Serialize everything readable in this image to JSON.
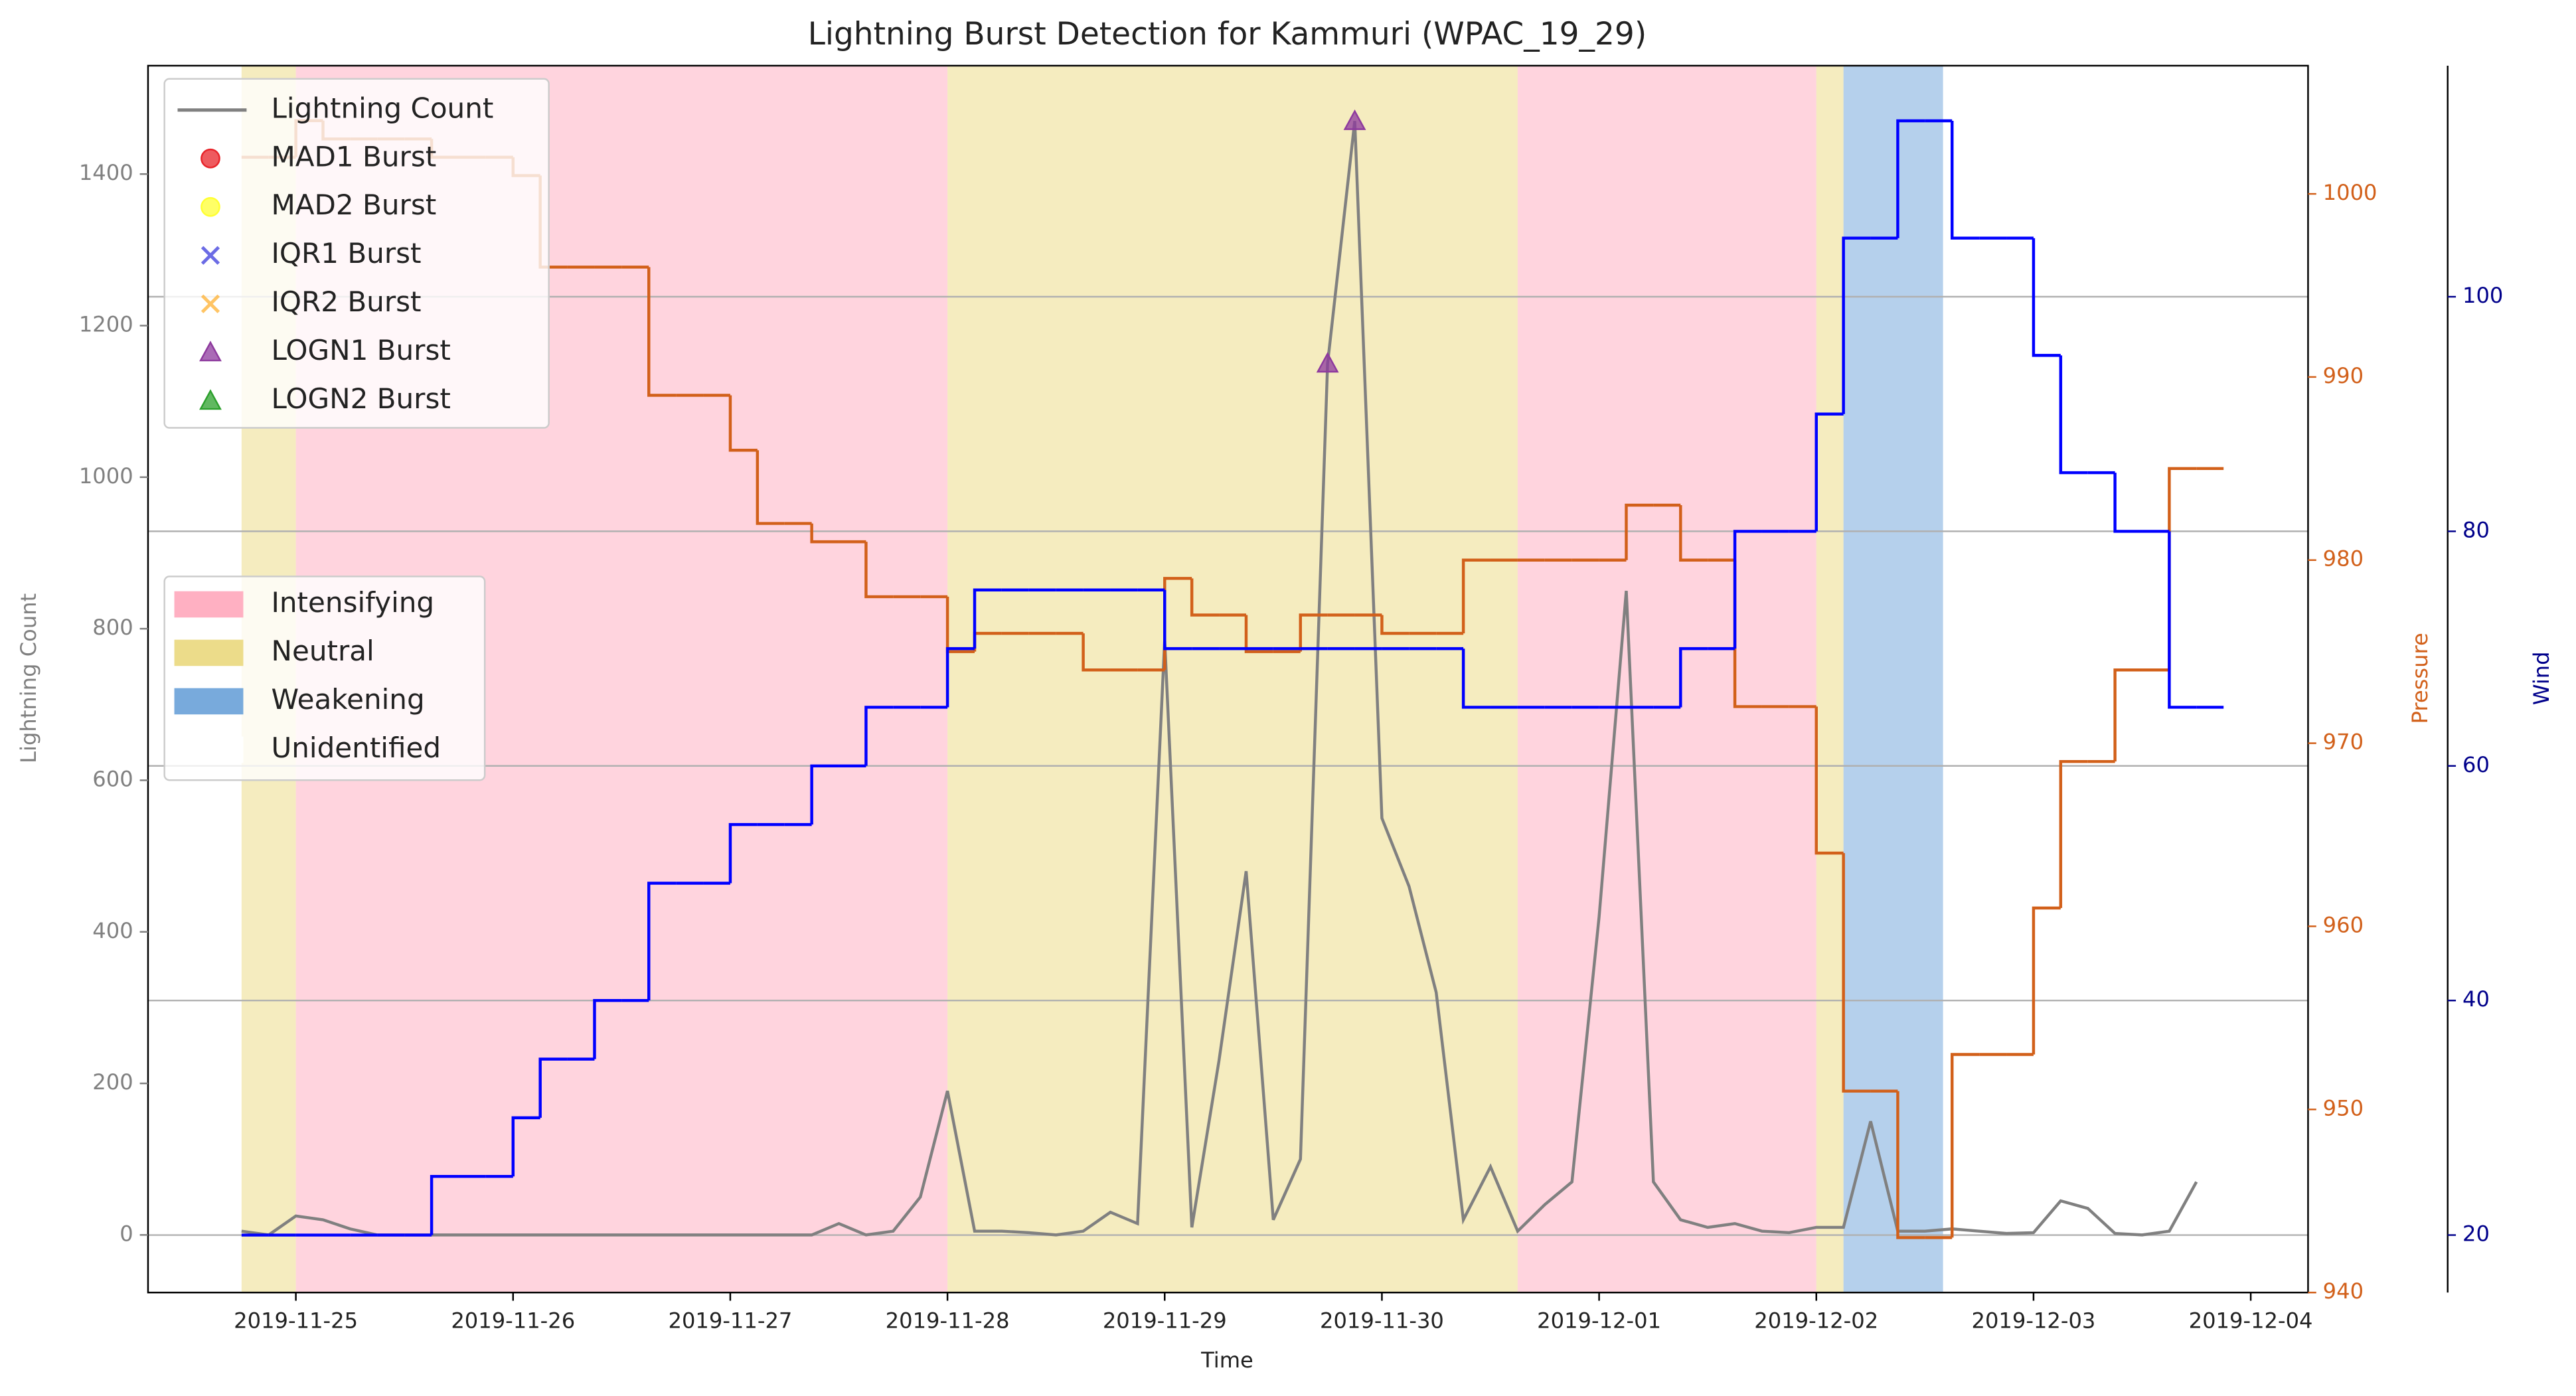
{
  "chart_data": {
    "type": "line",
    "title": "Lightning Burst Detection for Kammuri (WPAC_19_29)",
    "xlabel": "Time",
    "ylabel": "Lightning Count",
    "y2label": "Pressure",
    "y3label": "Wind",
    "xlim": [
      "2019-11-24 07:40",
      "2019-12-04 06:20"
    ],
    "xticks": [
      "2019-11-25",
      "2019-11-26",
      "2019-11-27",
      "2019-11-28",
      "2019-11-29",
      "2019-11-30",
      "2019-12-01",
      "2019-12-02",
      "2019-12-03",
      "2019-12-04"
    ],
    "ylim": [
      -76,
      1543
    ],
    "yticks": [
      0,
      200,
      400,
      600,
      800,
      1000,
      1200,
      1400
    ],
    "y2lim": [
      940,
      1007
    ],
    "y2ticks": [
      940,
      950,
      960,
      970,
      980,
      990,
      1000
    ],
    "y3lim": [
      15.1,
      119.7
    ],
    "y3ticks": [
      20,
      40,
      60,
      80,
      100
    ],
    "grid_axis": "y3",
    "x": [
      "2019-11-24 18:00",
      "2019-11-24 21:00",
      "2019-11-25 00:00",
      "2019-11-25 03:00",
      "2019-11-25 06:00",
      "2019-11-25 09:00",
      "2019-11-25 12:00",
      "2019-11-25 15:00",
      "2019-11-25 18:00",
      "2019-11-25 21:00",
      "2019-11-26 00:00",
      "2019-11-26 03:00",
      "2019-11-26 06:00",
      "2019-11-26 09:00",
      "2019-11-26 12:00",
      "2019-11-26 15:00",
      "2019-11-26 18:00",
      "2019-11-26 21:00",
      "2019-11-27 00:00",
      "2019-11-27 03:00",
      "2019-11-27 06:00",
      "2019-11-27 09:00",
      "2019-11-27 12:00",
      "2019-11-27 15:00",
      "2019-11-27 18:00",
      "2019-11-27 21:00",
      "2019-11-28 00:00",
      "2019-11-28 03:00",
      "2019-11-28 06:00",
      "2019-11-28 09:00",
      "2019-11-28 12:00",
      "2019-11-28 15:00",
      "2019-11-28 18:00",
      "2019-11-28 21:00",
      "2019-11-29 00:00",
      "2019-11-29 03:00",
      "2019-11-29 06:00",
      "2019-11-29 09:00",
      "2019-11-29 12:00",
      "2019-11-29 15:00",
      "2019-11-29 18:00",
      "2019-11-29 21:00",
      "2019-11-30 00:00",
      "2019-11-30 03:00",
      "2019-11-30 06:00",
      "2019-11-30 09:00",
      "2019-11-30 12:00",
      "2019-11-30 15:00",
      "2019-11-30 18:00",
      "2019-11-30 21:00",
      "2019-12-01 00:00",
      "2019-12-01 03:00",
      "2019-12-01 06:00",
      "2019-12-01 09:00",
      "2019-12-01 12:00",
      "2019-12-01 15:00",
      "2019-12-01 18:00",
      "2019-12-01 21:00",
      "2019-12-02 00:00",
      "2019-12-02 03:00",
      "2019-12-02 06:00",
      "2019-12-02 09:00",
      "2019-12-02 12:00",
      "2019-12-02 15:00",
      "2019-12-02 18:00",
      "2019-12-02 21:00",
      "2019-12-03 00:00",
      "2019-12-03 03:00",
      "2019-12-03 06:00",
      "2019-12-03 09:00",
      "2019-12-03 12:00",
      "2019-12-03 15:00",
      "2019-12-03 18:00"
    ],
    "series": [
      {
        "name": "Lightning Count",
        "color": "#808080",
        "axis": "y",
        "drawstyle": "default",
        "values": [
          5,
          0,
          25,
          20,
          8,
          0,
          0,
          0,
          0,
          0,
          0,
          0,
          0,
          0,
          0,
          0,
          0,
          0,
          0,
          0,
          0,
          0,
          15,
          0,
          5,
          50,
          190,
          5,
          5,
          3,
          0,
          5,
          30,
          15,
          785,
          10,
          230,
          480,
          20,
          100,
          1150,
          1470,
          550,
          460,
          320,
          20,
          90,
          5,
          40,
          70,
          420,
          850,
          70,
          20,
          10,
          15,
          5,
          3,
          10,
          10,
          150,
          5,
          5,
          8,
          5,
          2,
          3,
          45,
          35,
          2,
          0,
          5,
          70
        ]
      },
      {
        "color": "#d2601a",
        "axis": "y2",
        "drawstyle": "steps-post",
        "values": [
          1002,
          1002,
          1004,
          1003,
          1003,
          1003,
          1003,
          1002,
          1002,
          1002,
          1001,
          996,
          996,
          996,
          996,
          989,
          989,
          989,
          986,
          982,
          982,
          981,
          981,
          978,
          978,
          978,
          975,
          976,
          976,
          976,
          976,
          974,
          974,
          974,
          979,
          977,
          977,
          975,
          975,
          977,
          977,
          977,
          976,
          976,
          976,
          980,
          980,
          980,
          980,
          980,
          980,
          983,
          983,
          980,
          980,
          972,
          972,
          972,
          964,
          951,
          951,
          943,
          943,
          953,
          953,
          953,
          961,
          969,
          969,
          974,
          974,
          985,
          985
        ]
      },
      {
        "color": "#0000ff",
        "axis": "y3",
        "drawstyle": "steps-post",
        "values": [
          20,
          20,
          20,
          20,
          20,
          20,
          20,
          25,
          25,
          25,
          30,
          35,
          35,
          40,
          40,
          50,
          50,
          50,
          55,
          55,
          55,
          60,
          60,
          65,
          65,
          65,
          70,
          75,
          75,
          75,
          75,
          75,
          75,
          75,
          70,
          70,
          70,
          70,
          70,
          70,
          70,
          70,
          70,
          70,
          70,
          65,
          65,
          65,
          65,
          65,
          65,
          65,
          65,
          70,
          70,
          80,
          80,
          80,
          90,
          105,
          105,
          115,
          115,
          105,
          105,
          105,
          95,
          85,
          85,
          80,
          80,
          65,
          65
        ]
      }
    ],
    "bursts": [
      {
        "name": "MAD1 Burst",
        "color": "#e8242a",
        "marker": "o",
        "x": [],
        "values": []
      },
      {
        "name": "MAD2 Burst",
        "color": "#ffff33",
        "marker": "o",
        "x": [],
        "values": []
      },
      {
        "name": "IQR1 Burst",
        "color": "#3b3bdc",
        "marker": "x",
        "x": [],
        "values": []
      },
      {
        "name": "IQR2 Burst",
        "color": "#ffb030",
        "marker": "x",
        "x": [],
        "values": []
      },
      {
        "name": "LOGN1 Burst",
        "color": "#8e3a9e",
        "marker": "^",
        "x": [
          "2019-11-29 18:00",
          "2019-11-29 21:00"
        ],
        "values": [
          1150,
          1470
        ]
      },
      {
        "name": "LOGN2 Burst",
        "color": "#2ca02c",
        "marker": "^",
        "x": [],
        "values": []
      }
    ],
    "phase_legend": [
      {
        "name": "Intensifying",
        "color": "#ffb0c2"
      },
      {
        "name": "Neutral",
        "color": "#ecdc8a"
      },
      {
        "name": "Weakening",
        "color": "#78aadc"
      },
      {
        "name": "Unidentified",
        "color": "#ffffff"
      }
    ],
    "phases": [
      {
        "phase": "Neutral",
        "start": "2019-11-24 18:00",
        "end": "2019-11-25 00:00"
      },
      {
        "phase": "Intensifying",
        "start": "2019-11-25 00:00",
        "end": "2019-11-28 00:00"
      },
      {
        "phase": "Neutral",
        "start": "2019-11-28 00:00",
        "end": "2019-11-30 15:00"
      },
      {
        "phase": "Intensifying",
        "start": "2019-11-30 15:00",
        "end": "2019-12-02 00:00"
      },
      {
        "phase": "Neutral",
        "start": "2019-12-02 00:00",
        "end": "2019-12-02 03:00"
      },
      {
        "phase": "Weakening",
        "start": "2019-12-02 03:00",
        "end": "2019-12-02 14:00"
      }
    ]
  }
}
